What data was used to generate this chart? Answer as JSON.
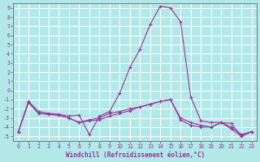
{
  "xlabel": "Windchill (Refroidissement éolien,°C)",
  "xlim": [
    -0.5,
    23.5
  ],
  "ylim": [
    -5.5,
    9.5
  ],
  "yticks": [
    -5,
    -4,
    -3,
    -2,
    -1,
    0,
    1,
    2,
    3,
    4,
    5,
    6,
    7,
    8,
    9
  ],
  "xticks": [
    0,
    1,
    2,
    3,
    4,
    5,
    6,
    7,
    8,
    9,
    10,
    11,
    12,
    13,
    14,
    15,
    16,
    17,
    18,
    19,
    20,
    21,
    22,
    23
  ],
  "bg_color": "#b2e8e8",
  "grid_color": "#ffffff",
  "line_color": "#993399",
  "curves": [
    {
      "x": [
        0,
        1,
        2,
        3,
        4,
        5,
        6,
        7,
        8,
        9,
        10,
        11,
        12,
        13,
        14,
        15,
        16,
        17,
        18,
        19,
        20,
        21,
        22,
        23
      ],
      "y": [
        -4.5,
        -1.2,
        -2.3,
        -2.5,
        -2.6,
        -2.8,
        -2.7,
        -4.8,
        -2.8,
        -2.3,
        -0.3,
        2.5,
        4.5,
        7.2,
        9.2,
        9.0,
        7.5,
        -0.7,
        -3.3,
        -3.5,
        -3.5,
        -3.6,
        -5.0,
        -4.5
      ]
    },
    {
      "x": [
        0,
        1,
        2,
        3,
        4,
        5,
        6,
        7,
        8,
        9,
        10,
        11,
        12,
        13,
        14,
        15,
        16,
        17,
        18,
        19,
        20,
        21,
        22,
        23
      ],
      "y": [
        -4.5,
        -1.3,
        -2.5,
        -2.6,
        -2.7,
        -3.0,
        -3.5,
        -3.3,
        -3.2,
        -2.8,
        -2.5,
        -2.2,
        -1.8,
        -1.5,
        -1.2,
        -1.0,
        -3.0,
        -3.5,
        -3.8,
        -4.0,
        -3.5,
        -4.2,
        -5.0,
        -4.5
      ]
    },
    {
      "x": [
        0,
        1,
        2,
        3,
        4,
        5,
        6,
        7,
        8,
        9,
        10,
        11,
        12,
        13,
        14,
        15,
        16,
        17,
        18,
        19,
        20,
        21,
        22,
        23
      ],
      "y": [
        -4.5,
        -1.3,
        -2.5,
        -2.6,
        -2.7,
        -3.0,
        -3.5,
        -3.2,
        -3.0,
        -2.5,
        -2.3,
        -2.0,
        -1.8,
        -1.5,
        -1.2,
        -1.0,
        -3.2,
        -3.8,
        -4.0,
        -4.0,
        -3.5,
        -4.0,
        -4.8,
        -4.5
      ]
    }
  ]
}
